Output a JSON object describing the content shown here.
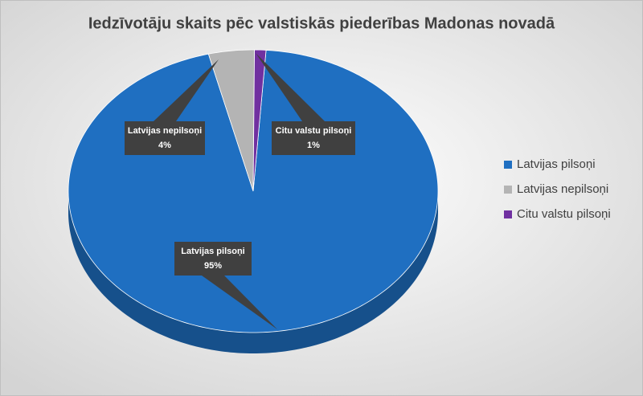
{
  "chart_data": {
    "type": "pie",
    "title": "Iedzīvotāju skaits pēc valstiskās piederības Madonas novadā",
    "categories": [
      "Latvijas pilsoņi",
      "Latvijas nepilsoņi",
      "Citu valstu pilsoņi"
    ],
    "values": [
      95,
      4,
      1
    ],
    "value_labels": [
      "95%",
      "4%",
      "1%"
    ],
    "colors": [
      "#1f6fc1",
      "#b4b4b4",
      "#7030a0"
    ],
    "legend": "right"
  }
}
